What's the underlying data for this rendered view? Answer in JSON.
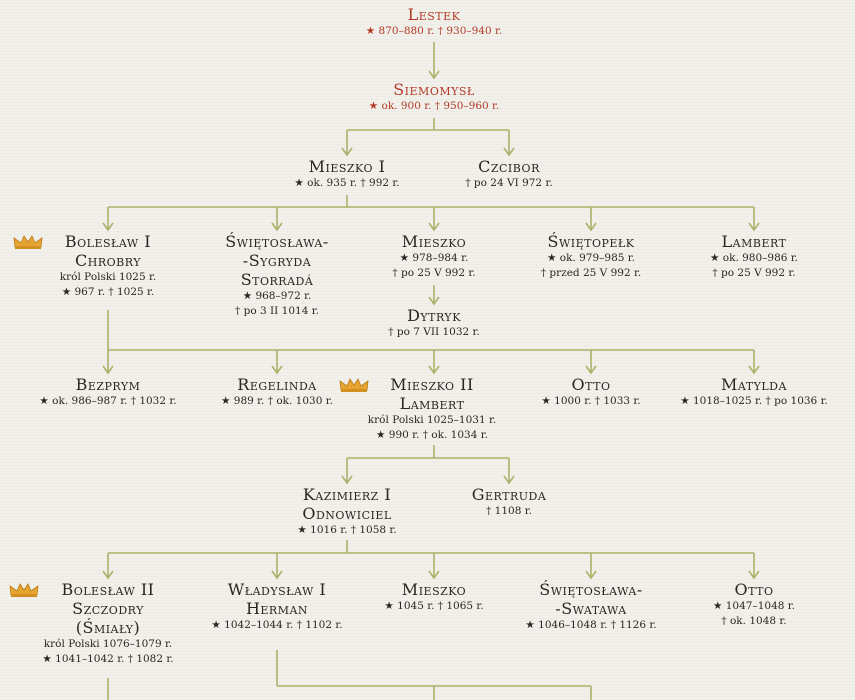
{
  "colors": {
    "line": "#aab26a",
    "name_red": "#b23a28",
    "crown": "#e6a531"
  },
  "people": [
    {
      "id": "lestek",
      "name": [
        "Lestek"
      ],
      "lines": [
        "★ 870–880 r.   † 930–940 r."
      ],
      "red": true
    },
    {
      "id": "siemomysl",
      "name": [
        "Siemomysł"
      ],
      "lines": [
        "★ ok. 900 r.   † 950–960 r."
      ],
      "red": true
    },
    {
      "id": "mieszko1",
      "name": [
        "Mieszko I"
      ],
      "lines": [
        "★ ok. 935 r.   † 992 r."
      ]
    },
    {
      "id": "czcibor",
      "name": [
        "Czcibor"
      ],
      "lines": [
        "† po 24 VI 972 r."
      ]
    },
    {
      "id": "boleslaw1",
      "name": [
        "Bolesław I",
        "Chrobry"
      ],
      "lines": [
        "król Polski 1025 r.",
        "★ 967 r.   † 1025 r."
      ],
      "crown": true
    },
    {
      "id": "swietoslawa1",
      "name": [
        "Świętosława-",
        "-Sygryda",
        "Storradá"
      ],
      "lines": [
        "★ 968–972 r.",
        "† po 3 II 1014 r."
      ]
    },
    {
      "id": "mieszko_b",
      "name": [
        "Mieszko"
      ],
      "lines": [
        "★ 978–984 r.",
        "† po 25 V 992 r."
      ]
    },
    {
      "id": "swietopelk",
      "name": [
        "Świętopełk"
      ],
      "lines": [
        "★ ok. 979–985 r.",
        "† przed 25 V 992 r."
      ]
    },
    {
      "id": "lambert1",
      "name": [
        "Lambert"
      ],
      "lines": [
        "★ ok. 980–986 r.",
        "† po 25 V 992 r."
      ]
    },
    {
      "id": "dytryk",
      "name": [
        "Dytryk"
      ],
      "lines": [
        "† po 7 VII 1032 r."
      ]
    },
    {
      "id": "bezprym",
      "name": [
        "Bezprym"
      ],
      "lines": [
        "★ ok. 986–987 r.   † 1032 r."
      ]
    },
    {
      "id": "regelinda",
      "name": [
        "Regelinda"
      ],
      "lines": [
        "★ 989 r.   † ok. 1030 r."
      ]
    },
    {
      "id": "mieszko2",
      "name": [
        "Mieszko II",
        "Lambert"
      ],
      "lines": [
        "król Polski 1025–1031 r.",
        "★ 990 r.   † ok. 1034 r."
      ],
      "crown": true
    },
    {
      "id": "otto1",
      "name": [
        "Otto"
      ],
      "lines": [
        "★ 1000 r.   † 1033 r."
      ]
    },
    {
      "id": "matylda",
      "name": [
        "Matylda"
      ],
      "lines": [
        "★ 1018–1025 r.   † po 1036 r."
      ]
    },
    {
      "id": "kazimierz1",
      "name": [
        "Kazimierz I",
        "Odnowiciel"
      ],
      "lines": [
        "★ 1016 r.   † 1058 r."
      ]
    },
    {
      "id": "gertruda",
      "name": [
        "Gertruda"
      ],
      "lines": [
        "† 1108 r."
      ]
    },
    {
      "id": "boleslaw2",
      "name": [
        "Bolesław II",
        "Szczodry",
        "(Śmiały)"
      ],
      "lines": [
        "król Polski 1076–1079 r.",
        "★ 1041–1042 r.   † 1082 r."
      ],
      "crown": true
    },
    {
      "id": "wladyslaw1",
      "name": [
        "Władysław I",
        "Herman"
      ],
      "lines": [
        "★ 1042–1044 r.   † 1102 r."
      ]
    },
    {
      "id": "mieszko_k",
      "name": [
        "Mieszko"
      ],
      "lines": [
        "★ 1045 r.   † 1065 r."
      ]
    },
    {
      "id": "swietoslawa2",
      "name": [
        "Świętosława-",
        "-Swatawa"
      ],
      "lines": [
        "★ 1046–1048 r.   † 1126 r."
      ]
    },
    {
      "id": "otto2",
      "name": [
        "Otto"
      ],
      "lines": [
        "★ 1047–1048 r.",
        "† ok. 1048 r."
      ]
    }
  ]
}
